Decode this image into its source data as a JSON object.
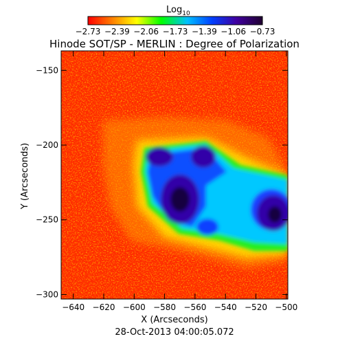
{
  "colorbar": {
    "label_base": "Log",
    "label_sub": "10",
    "ticks": [
      "-2.73",
      "-2.39",
      "-2.06",
      "-1.73",
      "-1.39",
      "-1.06",
      "-0.73"
    ],
    "range": [
      -2.73,
      -0.73
    ],
    "colors": [
      "#ff0000",
      "#ff8000",
      "#ffff00",
      "#00ff00",
      "#00c0ff",
      "#0040ff",
      "#4000a0",
      "#200030"
    ]
  },
  "title": "Hinode SOT/SP - MERLIN : Degree of Polarization",
  "x_axis": {
    "label": "X (Arcseconds)",
    "ticks": [
      "-640",
      "-620",
      "-600",
      "-580",
      "-560",
      "-540",
      "-520",
      "-500"
    ],
    "range": [
      -648,
      -499
    ]
  },
  "y_axis": {
    "label": "Y (Arcseconds)",
    "ticks": [
      "-150",
      "-200",
      "-250",
      "-300"
    ],
    "range": [
      -303,
      -137
    ]
  },
  "timestamp": "28-Oct-2013 04:00:05.072"
}
